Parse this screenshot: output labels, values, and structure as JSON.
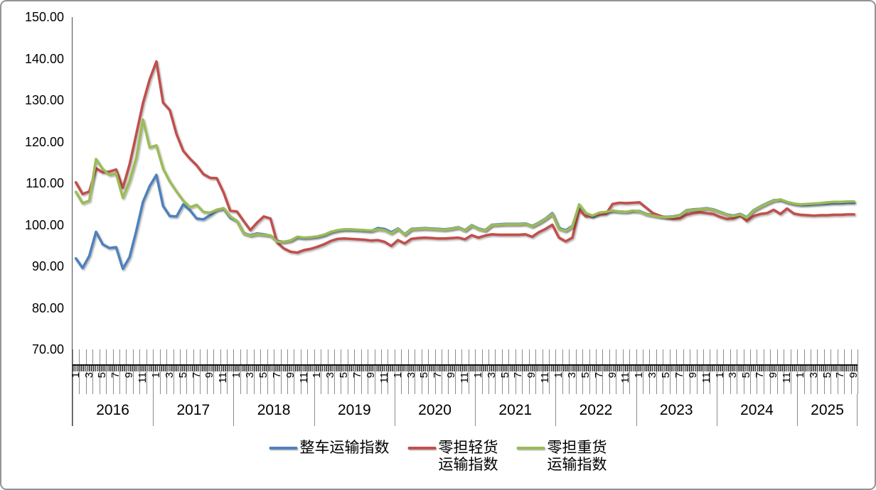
{
  "chart_data": {
    "type": "line",
    "title": "",
    "period_start": "2016-01",
    "period_end": "2025-09",
    "grid": "off",
    "legend_position": "bottom",
    "y_axis": {
      "min": 70,
      "max": 150,
      "step": 10,
      "tick_labels": [
        "150.00",
        "140.00",
        "130.00",
        "120.00",
        "110.00",
        "100.00",
        "90.00",
        "80.00",
        "70.00"
      ]
    },
    "x_axis": {
      "years": [
        {
          "label": "2016",
          "months": 12
        },
        {
          "label": "2017",
          "months": 12
        },
        {
          "label": "2018",
          "months": 12
        },
        {
          "label": "2019",
          "months": 12
        },
        {
          "label": "2020",
          "months": 12
        },
        {
          "label": "2021",
          "months": 12
        },
        {
          "label": "2022",
          "months": 12
        },
        {
          "label": "2023",
          "months": 12
        },
        {
          "label": "2024",
          "months": 12
        },
        {
          "label": "2025",
          "months": 9
        }
      ],
      "month_labels_shown": [
        "1",
        "3",
        "5",
        "7",
        "9",
        "11"
      ]
    },
    "series": [
      {
        "name": "整车运输指数",
        "color": "#4F81BD",
        "values": [
          91.9,
          89.6,
          92.5,
          98.3,
          95.3,
          94.4,
          94.6,
          89.4,
          92.2,
          98.5,
          105.5,
          109.3,
          112.0,
          104.5,
          102.1,
          102.0,
          104.9,
          103.5,
          101.5,
          101.3,
          102.3,
          103.6,
          103.9,
          101.7,
          100.9,
          98.0,
          97.5,
          97.9,
          97.7,
          97.4,
          96.1,
          95.9,
          96.2,
          97.0,
          96.8,
          96.9,
          97.1,
          97.5,
          98.2,
          98.6,
          98.8,
          98.8,
          98.7,
          98.6,
          98.5,
          99.2,
          99.0,
          98.2,
          99.1,
          97.7,
          99.0,
          99.1,
          99.2,
          99.1,
          99.0,
          98.9,
          99.1,
          99.4,
          98.7,
          99.9,
          99.1,
          98.7,
          100.0,
          100.1,
          100.2,
          100.2,
          100.2,
          100.3,
          99.7,
          100.5,
          101.5,
          102.8,
          99.2,
          98.7,
          99.7,
          104.6,
          102.5,
          101.9,
          102.8,
          103.0,
          103.3,
          103.2,
          103.1,
          103.3,
          103.3,
          102.6,
          102.3,
          102.0,
          101.9,
          102.0,
          102.3,
          103.5,
          103.7,
          103.8,
          104.0,
          103.7,
          103.1,
          102.5,
          102.2,
          102.6,
          101.8,
          103.5,
          104.4,
          105.2,
          105.9,
          106.0,
          105.4,
          105.0,
          104.8,
          104.8,
          104.9,
          105.0,
          105.1,
          105.2,
          105.2,
          105.3,
          105.3
        ]
      },
      {
        "name": "零担轻货运输指数",
        "color": "#C0504D",
        "values": [
          110.2,
          107.4,
          108.0,
          113.6,
          112.6,
          112.8,
          113.3,
          108.9,
          114.5,
          121.8,
          129.3,
          135.0,
          139.3,
          129.4,
          127.6,
          121.8,
          117.8,
          115.9,
          114.3,
          112.2,
          111.3,
          111.2,
          107.8,
          103.4,
          103.2,
          100.9,
          98.7,
          100.5,
          102.0,
          101.5,
          95.7,
          94.3,
          93.5,
          93.3,
          93.9,
          94.2,
          94.7,
          95.3,
          96.1,
          96.6,
          96.7,
          96.6,
          96.5,
          96.4,
          96.2,
          96.3,
          95.9,
          94.9,
          96.3,
          95.5,
          96.6,
          96.8,
          96.9,
          96.8,
          96.7,
          96.7,
          96.8,
          96.9,
          96.5,
          97.5,
          96.9,
          97.4,
          97.7,
          97.6,
          97.6,
          97.6,
          97.6,
          97.7,
          97.1,
          98.2,
          99.0,
          100.0,
          96.9,
          96.0,
          96.9,
          103.6,
          102.0,
          102.2,
          102.5,
          102.6,
          105.0,
          105.3,
          105.2,
          105.3,
          105.4,
          104.1,
          102.8,
          102.2,
          101.7,
          101.4,
          101.5,
          102.4,
          102.8,
          103.0,
          102.8,
          102.6,
          101.9,
          101.4,
          101.5,
          102.3,
          100.9,
          102.1,
          102.6,
          102.8,
          103.6,
          102.6,
          103.9,
          102.7,
          102.4,
          102.3,
          102.2,
          102.3,
          102.3,
          102.4,
          102.4,
          102.5,
          102.5
        ]
      },
      {
        "name": "零担重货运输指数",
        "color": "#9BBB59",
        "values": [
          107.9,
          105.2,
          105.8,
          115.8,
          113.4,
          112.0,
          112.3,
          106.5,
          110.5,
          116.1,
          125.3,
          118.6,
          119.1,
          113.5,
          110.4,
          108.0,
          105.8,
          104.2,
          104.8,
          103.1,
          102.9,
          103.6,
          104.0,
          102.0,
          100.9,
          97.9,
          97.4,
          97.7,
          97.6,
          97.4,
          95.9,
          95.9,
          96.2,
          97.1,
          96.9,
          97.0,
          97.2,
          97.6,
          98.3,
          98.7,
          98.9,
          98.9,
          98.8,
          98.7,
          98.6,
          98.9,
          98.7,
          97.9,
          99.0,
          97.6,
          98.9,
          99.0,
          99.1,
          99.0,
          98.9,
          98.8,
          99.0,
          99.3,
          98.6,
          99.8,
          99.0,
          98.6,
          99.9,
          100.0,
          100.1,
          100.1,
          100.1,
          100.2,
          99.6,
          100.4,
          101.4,
          102.6,
          99.0,
          98.5,
          99.5,
          104.9,
          102.8,
          102.2,
          102.9,
          103.1,
          103.4,
          103.2,
          103.1,
          103.4,
          103.2,
          102.5,
          102.2,
          101.9,
          101.8,
          101.9,
          102.2,
          103.4,
          103.6,
          103.7,
          103.9,
          103.6,
          103.0,
          102.4,
          102.1,
          102.5,
          101.7,
          103.4,
          104.3,
          105.1,
          105.8,
          106.1,
          105.5,
          105.1,
          104.9,
          105.0,
          105.1,
          105.2,
          105.4,
          105.5,
          105.5,
          105.6,
          105.6
        ]
      }
    ]
  },
  "legend": {
    "items": [
      {
        "label": "整车运输指数",
        "color": "#4F81BD"
      },
      {
        "label": "零担轻货\n运输指数",
        "color": "#C0504D"
      },
      {
        "label": "零担重货\n运输指数",
        "color": "#9BBB59"
      }
    ]
  }
}
